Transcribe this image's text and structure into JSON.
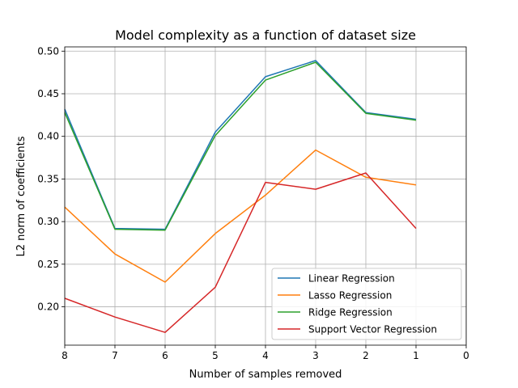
{
  "chart_data": {
    "type": "line",
    "title": "Model complexity as a function of dataset size",
    "xlabel": "Number of samples removed",
    "ylabel": "L2 norm of coefficients",
    "x_inverted": true,
    "xlim": [
      8,
      0
    ],
    "ylim": [
      0.155,
      0.505
    ],
    "x_ticks": [
      8,
      7,
      6,
      5,
      4,
      3,
      2,
      1,
      0
    ],
    "y_ticks": [
      0.2,
      0.25,
      0.3,
      0.35,
      0.4,
      0.45,
      0.5
    ],
    "y_tick_labels": [
      "0.20",
      "0.25",
      "0.30",
      "0.35",
      "0.40",
      "0.45",
      "0.50"
    ],
    "grid": true,
    "legend_position": "lower-right",
    "x": [
      8,
      7,
      6,
      5,
      4,
      3,
      2,
      1
    ],
    "series": [
      {
        "name": "Linear Regression",
        "color": "#1f77b4",
        "values": [
          0.432,
          0.292,
          0.291,
          0.405,
          0.47,
          0.489,
          0.428,
          0.42
        ]
      },
      {
        "name": "Lasso Regression",
        "color": "#ff7f0e",
        "values": [
          0.317,
          0.262,
          0.229,
          0.286,
          0.331,
          0.384,
          0.352,
          0.343
        ]
      },
      {
        "name": "Ridge Regression",
        "color": "#2ca02c",
        "values": [
          0.428,
          0.291,
          0.29,
          0.401,
          0.466,
          0.487,
          0.427,
          0.419
        ]
      },
      {
        "name": "Support Vector Regression",
        "color": "#d62728",
        "values": [
          0.21,
          0.188,
          0.17,
          0.223,
          0.346,
          0.338,
          0.357,
          0.292
        ]
      }
    ]
  }
}
